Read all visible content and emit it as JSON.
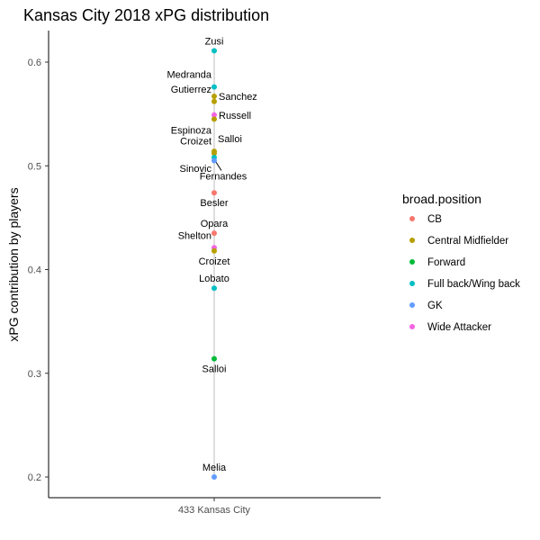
{
  "chart_data": {
    "type": "scatter",
    "title": "Kansas City 2018 xPG distribution",
    "xlabel": "",
    "ylabel": "xPG contribution by players",
    "category": "433 Kansas City",
    "ylim": [
      0.17,
      0.63
    ],
    "yticks": [
      "0.2",
      "0.3",
      "0.4",
      "0.5",
      "0.6"
    ],
    "legend": {
      "title": "broad.position",
      "position": "right",
      "entries": [
        {
          "name": "CB",
          "color": "#F8766D"
        },
        {
          "name": "Central Midfielder",
          "color": "#B79F00"
        },
        {
          "name": "Forward",
          "color": "#00BA38"
        },
        {
          "name": "Full back/Wing back",
          "color": "#00BFC4"
        },
        {
          "name": "GK",
          "color": "#619CFF"
        },
        {
          "name": "Wide Attacker",
          "color": "#F564E3"
        }
      ]
    },
    "points": [
      {
        "player": "Zusi",
        "position": "Full back/Wing back",
        "value": 0.611,
        "anchor": "above"
      },
      {
        "player": "Medranda",
        "position": "Full back/Wing back",
        "value": 0.576,
        "anchor": "upper-left"
      },
      {
        "player": "Sanchez",
        "position": "Central Midfielder",
        "value": 0.567,
        "anchor": "right"
      },
      {
        "player": "Gutierrez",
        "position": "Central Midfielder",
        "value": 0.562,
        "anchor": "upper-left"
      },
      {
        "player": "Russell",
        "position": "Wide Attacker",
        "value": 0.549,
        "anchor": "right"
      },
      {
        "player": "Espinoza",
        "position": "Central Midfielder",
        "value": 0.545,
        "anchor": "lower-left"
      },
      {
        "player": "Salloi",
        "position": "Central Midfielder",
        "value": 0.514,
        "anchor": "upper-right"
      },
      {
        "player": "Croizet",
        "position": "Central Midfielder",
        "value": 0.512,
        "anchor": "upper-left"
      },
      {
        "player": "Sinovic",
        "position": "Full back/Wing back",
        "value": 0.508,
        "anchor": "lower-left"
      },
      {
        "player": "Fernandes",
        "position": "GK",
        "value": 0.505,
        "anchor": "leader"
      },
      {
        "player": "Besler",
        "position": "CB",
        "value": 0.474,
        "anchor": "below"
      },
      {
        "player": "Opara",
        "position": "CB",
        "value": 0.435,
        "anchor": "above"
      },
      {
        "player": "Shelton",
        "position": "Wide Attacker",
        "value": 0.421,
        "anchor": "upper-left"
      },
      {
        "player": "Croizet",
        "position": "Central Midfielder",
        "value": 0.418,
        "anchor": "below"
      },
      {
        "player": "Lobato",
        "position": "Full back/Wing back",
        "value": 0.382,
        "anchor": "above"
      },
      {
        "player": "Salloi",
        "position": "Forward",
        "value": 0.314,
        "anchor": "below"
      },
      {
        "player": "Melia",
        "position": "GK",
        "value": 0.2,
        "anchor": "above"
      }
    ]
  }
}
